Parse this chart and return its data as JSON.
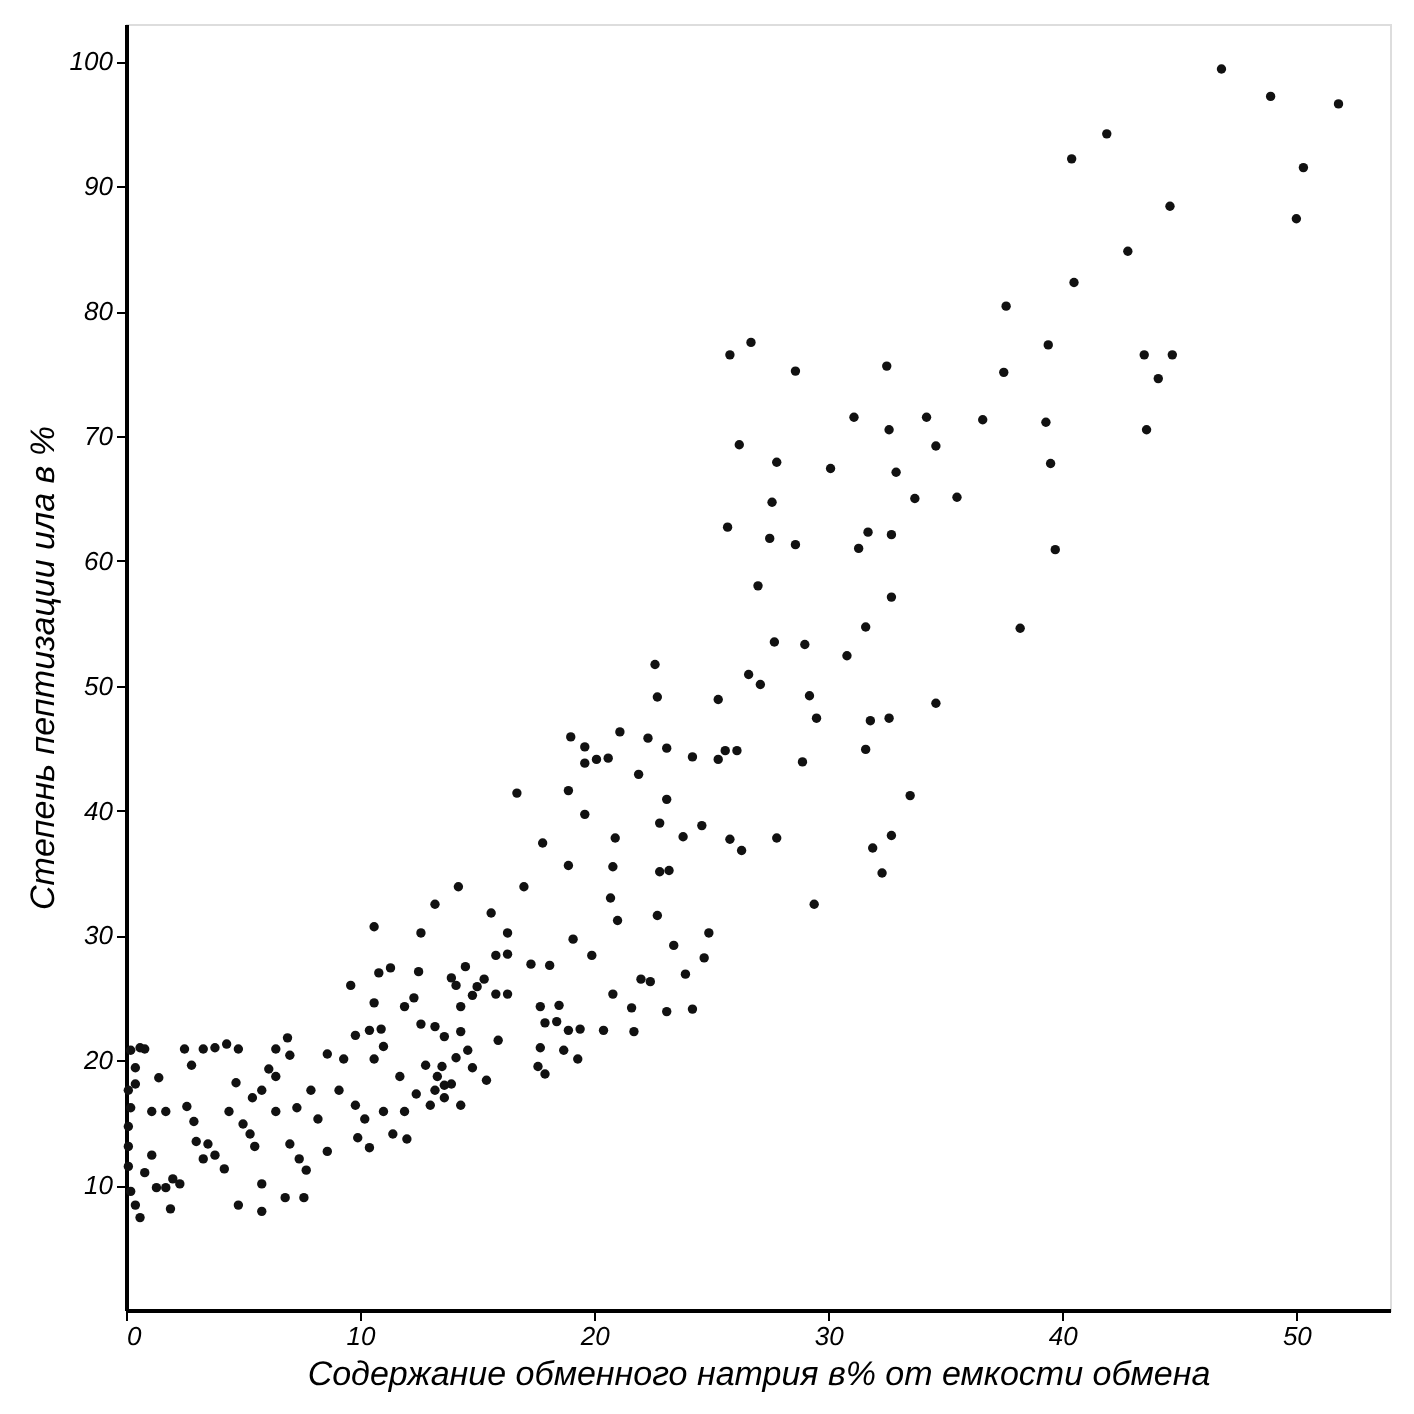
{
  "chart_data": {
    "type": "scatter",
    "xlabel": "Содержание обменного натрия в% от емкости обмена",
    "ylabel": "Степень пептизации ила в %",
    "grid": false,
    "xlim": [
      0,
      54
    ],
    "ylim": [
      0,
      103
    ],
    "xticks": [
      0,
      10,
      20,
      30,
      40,
      50
    ],
    "yticks": [
      10,
      20,
      30,
      40,
      50,
      60,
      70,
      80,
      90,
      100
    ],
    "series": [
      {
        "color": "#111111",
        "x": [
          46.8,
          48.9,
          51.8,
          41.9,
          40.4,
          50.3,
          44.6,
          50.0,
          42.8,
          40.5,
          37.6,
          26.7,
          25.8,
          32.5,
          39.4,
          43.5,
          44.7,
          44.1,
          28.6,
          37.5,
          31.1,
          34.2,
          36.6,
          39.3,
          43.6,
          32.6,
          26.2,
          34.6,
          27.8,
          30.1,
          32.9,
          39.5,
          27.6,
          33.7,
          35.5,
          25.7,
          27.5,
          28.6,
          31.7,
          32.7,
          31.3,
          39.7,
          27.0,
          32.7,
          31.6,
          38.2,
          27.7,
          29.0,
          30.8,
          22.6,
          26.6,
          27.1,
          22.7,
          25.3,
          29.2,
          34.6,
          29.5,
          31.8,
          32.6,
          19.0,
          21.1,
          22.3,
          23.1,
          19.6,
          19.6,
          20.1,
          20.6,
          24.2,
          25.3,
          25.6,
          26.1,
          28.9,
          31.6,
          21.9,
          16.7,
          18.9,
          23.1,
          33.5,
          19.6,
          22.8,
          24.6,
          20.9,
          23.8,
          25.8,
          27.8,
          32.7,
          17.8,
          26.3,
          31.9,
          18.9,
          20.8,
          22.8,
          23.2,
          32.3,
          14.2,
          17.0,
          20.7,
          29.4,
          13.2,
          15.6,
          21.0,
          22.7,
          10.6,
          12.6,
          16.3,
          24.9,
          19.1,
          23.4,
          15.8,
          16.3,
          19.9,
          24.7,
          17.3,
          18.1,
          11.3,
          10.8,
          12.5,
          23.9,
          22.0,
          22.4,
          14.5,
          13.9,
          15.3,
          9.6,
          20.8,
          12.3,
          14.8,
          15.8,
          16.3,
          14.1,
          15.0,
          21.6,
          23.1,
          24.2,
          17.7,
          18.5,
          11.9,
          14.3,
          10.6,
          12.6,
          17.9,
          18.4,
          21.7,
          20.4,
          18.9,
          19.4,
          15.9,
          13.2,
          14.3,
          13.6,
          9.8,
          10.4,
          10.9,
          17.7,
          18.7,
          19.3,
          17.6,
          17.9,
          14.6,
          14.1,
          11.0,
          10.6,
          12.8,
          13.5,
          14.8,
          15.4,
          8.6,
          9.3,
          11.7,
          13.3,
          13.6,
          0.2,
          0.6,
          0.8,
          0.4,
          0.1,
          0.2,
          0.1,
          0.1,
          0.1,
          0.2,
          0.6,
          0.4,
          0.8,
          0.4,
          1.4,
          1.1,
          1.7,
          1.1,
          1.3,
          1.9,
          1.7,
          2.0,
          2.3,
          2.5,
          2.8,
          2.6,
          2.9,
          3.0,
          3.3,
          3.5,
          3.8,
          4.2,
          3.3,
          3.8,
          4.3,
          4.8,
          4.7,
          4.4,
          5.0,
          5.3,
          5.5,
          5.8,
          5.8,
          4.8,
          5.8,
          6.1,
          6.4,
          6.4,
          6.8,
          7.0,
          7.0,
          7.4,
          7.6,
          7.7,
          7.9,
          7.3,
          6.9,
          6.4,
          5.4,
          8.2,
          8.6,
          9.1,
          9.8,
          10.2,
          9.9,
          10.4,
          11.0,
          11.4,
          12.0,
          11.9,
          12.4,
          13.0,
          13.2,
          13.6,
          13.9,
          14.3
        ],
        "values": [
          99.4,
          97.2,
          96.6,
          94.2,
          92.2,
          91.5,
          88.4,
          87.4,
          84.8,
          82.3,
          80.4,
          77.5,
          76.5,
          75.6,
          77.3,
          76.5,
          76.5,
          74.6,
          75.2,
          75.1,
          71.5,
          71.5,
          71.3,
          71.1,
          70.5,
          70.5,
          69.3,
          69.2,
          67.9,
          67.4,
          67.1,
          67.8,
          64.7,
          65.0,
          65.1,
          62.7,
          61.8,
          61.3,
          62.3,
          62.1,
          61.0,
          60.9,
          58.0,
          57.1,
          54.7,
          54.6,
          53.5,
          53.3,
          52.4,
          51.7,
          50.9,
          50.1,
          49.1,
          48.9,
          49.2,
          48.6,
          47.4,
          47.2,
          47.4,
          45.9,
          46.3,
          45.8,
          45.0,
          45.1,
          43.8,
          44.1,
          44.2,
          44.3,
          44.1,
          44.8,
          44.8,
          43.9,
          44.9,
          42.9,
          41.4,
          41.6,
          40.9,
          41.2,
          39.7,
          39.0,
          38.8,
          37.8,
          37.9,
          37.7,
          37.8,
          38.0,
          37.4,
          36.8,
          37.0,
          35.6,
          35.5,
          35.1,
          35.2,
          35.0,
          33.9,
          33.9,
          33.0,
          32.5,
          32.5,
          31.8,
          31.2,
          31.6,
          30.7,
          30.2,
          30.2,
          30.2,
          29.7,
          29.2,
          28.4,
          28.5,
          28.4,
          28.2,
          27.7,
          27.6,
          27.4,
          27.0,
          27.1,
          26.9,
          26.5,
          26.3,
          27.5,
          26.6,
          26.5,
          26.0,
          25.3,
          25.0,
          25.2,
          25.3,
          25.3,
          26.0,
          25.9,
          24.2,
          23.9,
          24.1,
          24.3,
          24.4,
          24.3,
          24.3,
          24.6,
          22.9,
          23.0,
          23.1,
          22.3,
          22.4,
          22.4,
          22.5,
          21.6,
          22.7,
          22.3,
          21.9,
          22.0,
          22.4,
          22.5,
          21.0,
          20.8,
          20.1,
          19.5,
          18.9,
          20.8,
          20.2,
          21.1,
          20.1,
          19.6,
          19.5,
          19.4,
          18.4,
          20.5,
          20.1,
          18.7,
          18.7,
          18.0,
          20.8,
          21.0,
          20.9,
          19.4,
          17.6,
          16.2,
          14.7,
          13.1,
          11.5,
          9.5,
          7.4,
          8.4,
          11.0,
          18.1,
          18.6,
          15.9,
          15.9,
          12.4,
          9.8,
          8.1,
          9.8,
          10.5,
          10.1,
          20.9,
          19.6,
          16.3,
          15.1,
          13.5,
          12.1,
          13.3,
          12.4,
          11.3,
          20.9,
          21.0,
          21.3,
          20.9,
          18.2,
          15.9,
          14.9,
          14.1,
          13.1,
          10.1,
          7.9,
          8.4,
          17.6,
          19.3,
          20.9,
          15.9,
          9.0,
          13.3,
          20.4,
          12.1,
          9.0,
          11.2,
          17.6,
          16.2,
          21.8,
          18.7,
          17.0,
          15.3,
          12.7,
          17.6,
          16.4,
          15.3,
          13.8,
          13.0,
          15.9,
          14.1,
          13.7,
          15.9,
          17.3,
          16.4,
          17.6,
          17.0,
          18.1,
          16.4
        ]
      }
    ]
  }
}
